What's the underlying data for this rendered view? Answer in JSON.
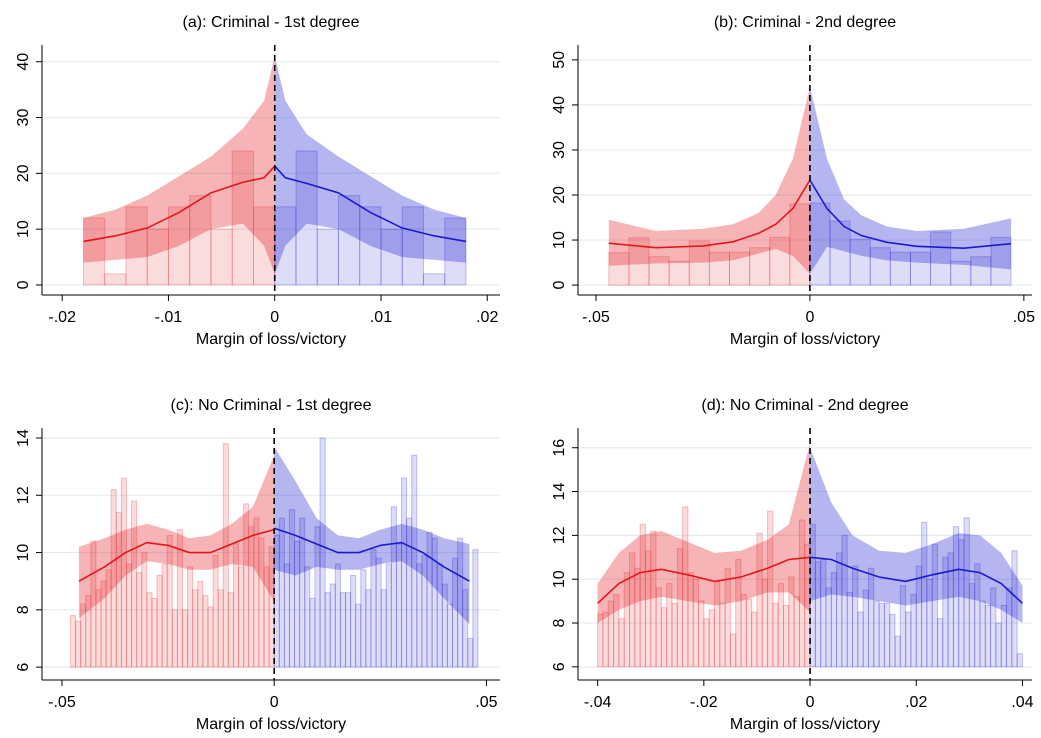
{
  "chart_data": [
    {
      "type": "rdplot",
      "title": "(a): Criminal - 1st degree",
      "x_label": "Margin of loss/victory",
      "xlim": [
        -0.0219,
        0.0212
      ],
      "ylim": [
        -1.8,
        43
      ],
      "xticks": [
        {
          "value": -0.02,
          "label": "-.02"
        },
        {
          "value": -0.01,
          "label": "-.01"
        },
        0,
        {
          "value": 0.01,
          "label": ".01"
        },
        {
          "value": 0.02,
          "label": ".02"
        }
      ],
      "yticks": [
        0,
        10,
        20,
        30,
        40
      ],
      "grid": true,
      "cutoff": 0,
      "bar_base": 0,
      "series": [
        {
          "color": "#e3161c",
          "bins": [
            -0.018,
            -0.016,
            -0.014,
            -0.012,
            -0.01,
            -0.008,
            -0.006,
            -0.004,
            -0.002,
            0
          ],
          "counts": [
            12,
            2,
            14,
            10,
            14,
            16,
            10,
            24,
            14
          ],
          "fit_x": [
            -0.018,
            -0.015,
            -0.012,
            -0.009,
            -0.006,
            -0.003,
            -0.001,
            0
          ],
          "fit": [
            7.8,
            8.8,
            10.2,
            13,
            16.5,
            18.4,
            19.2,
            21.3
          ],
          "fit_upper": [
            12,
            13.5,
            16,
            19.5,
            23,
            28,
            33,
            41
          ],
          "fit_lower": [
            4,
            4.5,
            5,
            7,
            10,
            11,
            7,
            2
          ]
        },
        {
          "color": "#1a1ad0",
          "bins": [
            0,
            0.002,
            0.004,
            0.006,
            0.008,
            0.01,
            0.012,
            0.014,
            0.016,
            0.018
          ],
          "counts": [
            14,
            24,
            10,
            16,
            14,
            10,
            14,
            2,
            12
          ],
          "fit_x": [
            0,
            0.001,
            0.003,
            0.006,
            0.009,
            0.012,
            0.015,
            0.018
          ],
          "fit": [
            21.3,
            19.2,
            18.2,
            16.5,
            13,
            10.2,
            8.8,
            7.8
          ],
          "fit_upper": [
            41,
            33,
            27,
            23,
            19.5,
            16,
            13.5,
            12
          ],
          "fit_lower": [
            2,
            7,
            11,
            10,
            7,
            5,
            4.5,
            4
          ]
        }
      ]
    },
    {
      "type": "rdplot",
      "title": "(b): Criminal - 2nd degree",
      "x_label": "Margin of loss/victory",
      "xlim": [
        -0.0542,
        0.0519
      ],
      "ylim": [
        -2.2,
        53.3
      ],
      "xticks": [
        {
          "value": -0.05,
          "label": "-.05"
        },
        0,
        {
          "value": 0.05,
          "label": ".05"
        }
      ],
      "yticks": [
        0,
        10,
        20,
        30,
        40,
        50
      ],
      "grid": true,
      "cutoff": 0,
      "bar_base": 0,
      "series": [
        {
          "color": "#e3161c",
          "bins": [
            -0.047,
            -0.0423,
            -0.0376,
            -0.0329,
            -0.0282,
            -0.0235,
            -0.0188,
            -0.0141,
            -0.0094,
            -0.0047,
            0
          ],
          "counts": [
            7.2,
            10.5,
            6.3,
            5.3,
            9.8,
            7.3,
            7.3,
            8.3,
            10.6,
            18
          ],
          "fit_x": [
            -0.047,
            -0.036,
            -0.025,
            -0.018,
            -0.012,
            -0.008,
            -0.004,
            0
          ],
          "fit": [
            9.3,
            8.3,
            8.7,
            9.6,
            11.5,
            13.5,
            17,
            23.3
          ],
          "fit_upper": [
            14.5,
            12,
            12.5,
            13.5,
            16,
            20,
            28,
            44
          ],
          "fit_lower": [
            4.3,
            4.8,
            5,
            5.5,
            7,
            8,
            6.5,
            2.5
          ]
        },
        {
          "color": "#1a1ad0",
          "bins": [
            0,
            0.0047,
            0.0094,
            0.0141,
            0.0188,
            0.0235,
            0.0282,
            0.0329,
            0.0376,
            0.0423,
            0.047
          ],
          "counts": [
            18.2,
            14.2,
            10.2,
            8.3,
            7.3,
            7.3,
            11.8,
            5.3,
            6.3,
            10.6
          ],
          "fit_x": [
            0,
            0.004,
            0.008,
            0.012,
            0.018,
            0.025,
            0.036,
            0.047
          ],
          "fit": [
            23.3,
            17,
            13,
            11,
            9.5,
            8.6,
            8.2,
            9.2
          ],
          "fit_upper": [
            44,
            28,
            19,
            15.5,
            13,
            12,
            12.5,
            14.8
          ],
          "fit_lower": [
            2.5,
            8.5,
            7.5,
            6.5,
            5.5,
            5,
            4.5,
            3.5
          ]
        }
      ]
    },
    {
      "type": "rdplot",
      "title": "(c): No Criminal - 1st degree",
      "x_label": "Margin of loss/victory",
      "xlim": [
        -0.0547,
        0.0532
      ],
      "ylim": [
        5.55,
        14.35
      ],
      "xticks": [
        {
          "value": -0.05,
          "label": "-.05"
        },
        0,
        {
          "value": 0.05,
          "label": ".05"
        }
      ],
      "yticks": [
        6,
        8,
        10,
        12,
        14
      ],
      "grid": true,
      "cutoff": 0,
      "bar_base": 6,
      "series": [
        {
          "color": "#e3161c",
          "bins": [
            -0.048,
            -0.0468,
            -0.0456,
            -0.0444,
            -0.0432,
            -0.042,
            -0.0408,
            -0.0396,
            -0.0384,
            -0.0372,
            -0.036,
            -0.0348,
            -0.0336,
            -0.0324,
            -0.0312,
            -0.03,
            -0.0288,
            -0.0276,
            -0.0264,
            -0.0252,
            -0.024,
            -0.0228,
            -0.0216,
            -0.0204,
            -0.0192,
            -0.018,
            -0.0168,
            -0.0156,
            -0.0144,
            -0.0132,
            -0.012,
            -0.0108,
            -0.0096,
            -0.0084,
            -0.0072,
            -0.006,
            -0.0048,
            -0.0036,
            -0.0024,
            -0.0012,
            0
          ],
          "counts": [
            7.8,
            7.6,
            8.2,
            8.5,
            10.4,
            8.7,
            9,
            9.4,
            12.2,
            11.4,
            12.6,
            9.6,
            11.8,
            9.3,
            10,
            8.6,
            8.4,
            9.2,
            9.6,
            10.6,
            8,
            10.8,
            8,
            9.5,
            8.7,
            9,
            8.5,
            8.1,
            9.9,
            8.7,
            13.8,
            8.6,
            10.3,
            9.5,
            11.7,
            10.9,
            11.2,
            10.5,
            9.5,
            10.2
          ],
          "fit_x": [
            -0.046,
            -0.04,
            -0.035,
            -0.03,
            -0.025,
            -0.02,
            -0.015,
            -0.01,
            -0.005,
            0
          ],
          "fit": [
            9,
            9.5,
            10,
            10.35,
            10.25,
            10,
            10,
            10.3,
            10.6,
            10.8
          ],
          "fit_upper": [
            10.2,
            10.5,
            10.8,
            11,
            10.8,
            10.5,
            10.6,
            11,
            11.6,
            13.4
          ],
          "fit_lower": [
            7.7,
            8.4,
            9.2,
            9.7,
            9.6,
            9.4,
            9.4,
            9.6,
            9.5,
            8.3
          ]
        },
        {
          "color": "#1a1ad0",
          "bins": [
            0,
            0.0012,
            0.0024,
            0.0036,
            0.0048,
            0.006,
            0.0072,
            0.0084,
            0.0096,
            0.0108,
            0.012,
            0.0132,
            0.0144,
            0.0156,
            0.0168,
            0.018,
            0.0192,
            0.0204,
            0.0216,
            0.0228,
            0.024,
            0.0252,
            0.0264,
            0.0276,
            0.0288,
            0.03,
            0.0312,
            0.0324,
            0.0336,
            0.0348,
            0.036,
            0.0372,
            0.0384,
            0.0396,
            0.0408,
            0.042,
            0.0432,
            0.0444,
            0.0456,
            0.0468,
            0.048
          ],
          "counts": [
            10.6,
            11.2,
            9.6,
            11.5,
            10.4,
            11.2,
            9.5,
            8.4,
            10.9,
            14,
            8.6,
            8.9,
            9.6,
            8.6,
            8.6,
            9.2,
            8.2,
            9.4,
            8.7,
            10.1,
            9.8,
            8.7,
            9.6,
            11.6,
            10.3,
            12.6,
            11.2,
            13.4,
            9.6,
            9.9,
            10.7,
            10.5,
            9.6,
            8.9,
            8.2,
            9.8,
            10.5,
            8.7,
            7,
            10.1
          ],
          "fit_x": [
            0,
            0.005,
            0.01,
            0.015,
            0.02,
            0.025,
            0.03,
            0.035,
            0.04,
            0.046
          ],
          "fit": [
            10.85,
            10.6,
            10.3,
            10,
            10,
            10.25,
            10.35,
            10,
            9.5,
            9
          ],
          "fit_upper": [
            13.7,
            12.5,
            11.2,
            10.6,
            10.5,
            10.8,
            11,
            10.8,
            10.5,
            10.3
          ],
          "fit_lower": [
            9.4,
            9.2,
            9.5,
            9.4,
            9.4,
            9.6,
            9.7,
            9.2,
            8.4,
            7.5
          ]
        }
      ]
    },
    {
      "type": "rdplot",
      "title": "(d): No Criminal - 2nd degree",
      "x_label": "Margin of loss/victory",
      "xlim": [
        -0.0437,
        0.0418
      ],
      "ylim": [
        5.4,
        16.9
      ],
      "xticks": [
        {
          "value": -0.04,
          "label": "-.04"
        },
        {
          "value": -0.02,
          "label": "-.02"
        },
        0,
        {
          "value": 0.02,
          "label": ".02"
        },
        {
          "value": 0.04,
          "label": ".04"
        }
      ],
      "yticks": [
        6,
        8,
        10,
        12,
        14,
        16
      ],
      "grid": true,
      "cutoff": 0,
      "bar_base": 6,
      "series": [
        {
          "color": "#e3161c",
          "bins": [
            -0.04,
            -0.039,
            -0.038,
            -0.037,
            -0.036,
            -0.035,
            -0.034,
            -0.033,
            -0.032,
            -0.031,
            -0.03,
            -0.029,
            -0.028,
            -0.027,
            -0.026,
            -0.025,
            -0.024,
            -0.023,
            -0.022,
            -0.021,
            -0.02,
            -0.019,
            -0.018,
            -0.017,
            -0.016,
            -0.015,
            -0.014,
            -0.013,
            -0.012,
            -0.011,
            -0.01,
            -0.009,
            -0.008,
            -0.007,
            -0.006,
            -0.005,
            -0.004,
            -0.003,
            -0.002,
            -0.001,
            0
          ],
          "counts": [
            8.4,
            8.5,
            9,
            9.3,
            8.2,
            10.3,
            11.2,
            10.5,
            12.5,
            11.3,
            12.2,
            9.6,
            8.7,
            9.8,
            8.9,
            11.4,
            13.3,
            10.3,
            10,
            9,
            8.2,
            8.6,
            9.9,
            8.9,
            10.5,
            7.5,
            10.9,
            9.3,
            9.1,
            8.5,
            12.1,
            10,
            13.1,
            8.9,
            9.8,
            8.8,
            10.1,
            9.2,
            12.7,
            11.6
          ],
          "fit_x": [
            -0.04,
            -0.036,
            -0.032,
            -0.028,
            -0.023,
            -0.018,
            -0.013,
            -0.008,
            -0.004,
            0
          ],
          "fit": [
            8.9,
            9.8,
            10.3,
            10.45,
            10.2,
            9.9,
            10.1,
            10.5,
            10.9,
            11
          ],
          "fit_upper": [
            9.8,
            11.2,
            12,
            12.2,
            11.7,
            11.2,
            11.3,
            11.8,
            12.5,
            16.2
          ],
          "fit_lower": [
            8,
            8.6,
            9,
            9.2,
            9,
            8.8,
            9,
            9.4,
            9.4,
            8.5
          ]
        },
        {
          "color": "#1a1ad0",
          "bins": [
            0,
            0.001,
            0.002,
            0.003,
            0.004,
            0.005,
            0.006,
            0.007,
            0.008,
            0.009,
            0.01,
            0.011,
            0.012,
            0.013,
            0.014,
            0.015,
            0.016,
            0.017,
            0.018,
            0.019,
            0.02,
            0.021,
            0.022,
            0.023,
            0.024,
            0.025,
            0.026,
            0.027,
            0.028,
            0.029,
            0.03,
            0.031,
            0.032,
            0.033,
            0.034,
            0.035,
            0.036,
            0.037,
            0.038,
            0.039,
            0.04
          ],
          "counts": [
            12.5,
            10.8,
            10.9,
            9.6,
            10.3,
            11.2,
            12,
            9.4,
            10.6,
            8.5,
            9.5,
            10.5,
            9,
            8.9,
            8.9,
            8.4,
            7.4,
            9.7,
            8.5,
            9.3,
            10.6,
            12.6,
            10,
            11.6,
            8.2,
            11,
            11.2,
            12.4,
            11.8,
            12.8,
            9.8,
            10.7,
            9,
            8.8,
            9.6,
            8,
            8.8,
            9.6,
            11.3,
            6.6
          ],
          "fit_x": [
            0,
            0.004,
            0.008,
            0.013,
            0.018,
            0.023,
            0.028,
            0.032,
            0.036,
            0.04
          ],
          "fit": [
            11,
            10.9,
            10.5,
            10.1,
            9.9,
            10.2,
            10.45,
            10.3,
            9.8,
            8.9
          ],
          "fit_upper": [
            16,
            13.5,
            12,
            11.3,
            11.2,
            11.6,
            12.1,
            12,
            11.2,
            9.7
          ],
          "fit_lower": [
            9,
            9.3,
            9.2,
            9,
            8.8,
            9,
            9.2,
            9,
            8.6,
            8
          ]
        }
      ]
    }
  ]
}
